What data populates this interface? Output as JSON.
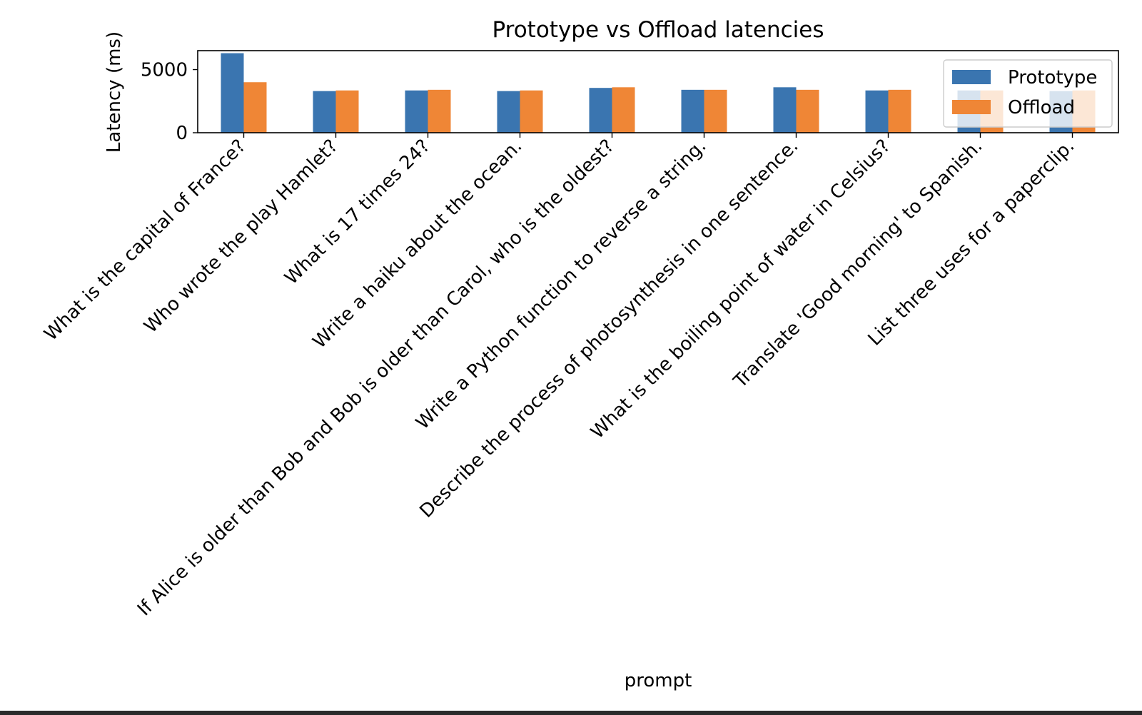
{
  "chart_data": {
    "type": "bar",
    "title": "Prototype vs Offload latencies",
    "xlabel": "prompt",
    "ylabel": "Latency (ms)",
    "ylim": [
      0,
      6500
    ],
    "yticks": [
      0,
      5000
    ],
    "ytick_labels": [
      "0",
      "5000"
    ],
    "grid": false,
    "legend_position": "top-right",
    "categories": [
      "What is the capital of France?",
      "Who wrote the play Hamlet?",
      "What is 17 times 24?",
      "Write a haiku about the ocean.",
      "If Alice is older than Bob and Bob is older than Carol, who is the oldest?",
      "Write a Python function to reverse a string.",
      "Describe the process of photosynthesis in one sentence.",
      "What is the boiling point of water in Celsius?",
      "Translate 'Good morning' to Spanish.",
      "List three uses for a paperclip."
    ],
    "series": [
      {
        "name": "Prototype",
        "color": "#3a75b0",
        "values": [
          6300,
          3300,
          3350,
          3300,
          3550,
          3400,
          3600,
          3350,
          3350,
          3300
        ]
      },
      {
        "name": "Offload",
        "color": "#ef8636",
        "values": [
          4000,
          3350,
          3400,
          3350,
          3600,
          3400,
          3400,
          3400,
          3350,
          3350
        ]
      }
    ]
  }
}
